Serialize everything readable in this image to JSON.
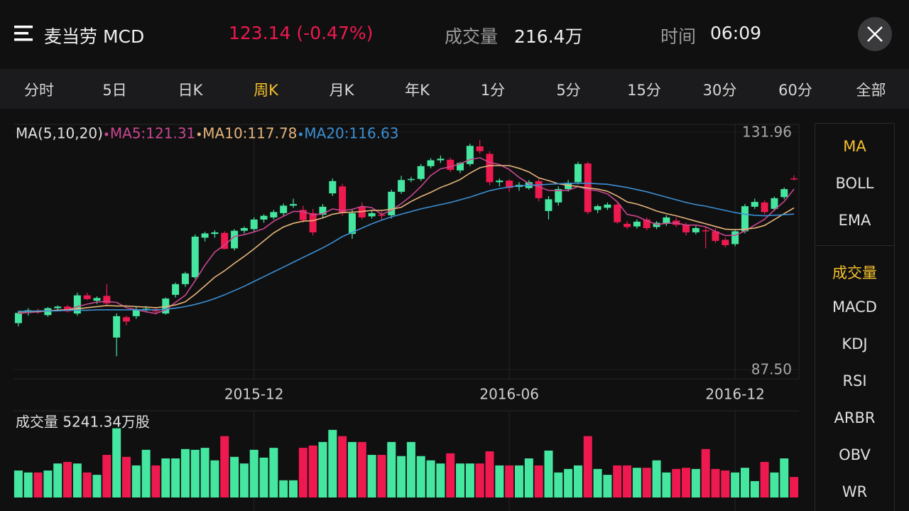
{
  "header": {
    "title": "麦当劳 MCD",
    "price": "123.14 (-0.47%)",
    "volume_label": "成交量",
    "volume": "216.4万",
    "time_label": "时间",
    "time": "06:09"
  },
  "tabs": [
    "分时",
    "5日",
    "日K",
    "周K",
    "月K",
    "年K",
    "1分",
    "5分",
    "15分",
    "30分",
    "60分",
    "全部"
  ],
  "active_tab": 3,
  "indicators": {
    "main": [
      "MA",
      "BOLL",
      "EMA"
    ],
    "sub": [
      "成交量",
      "MACD",
      "KDJ",
      "RSI",
      "ARBR",
      "OBV",
      "WR"
    ],
    "active_main": 0,
    "active_sub": 0
  },
  "chart_data": [
    {
      "type": "candlestick",
      "legend_title": "MA(5,10,20)",
      "categories": [
        null,
        null,
        null,
        null,
        null,
        null,
        null,
        null,
        null,
        null,
        null,
        null,
        null,
        null,
        null,
        null,
        null,
        null,
        null,
        null,
        null,
        null,
        null,
        null,
        "2015-12",
        null,
        null,
        null,
        null,
        null,
        null,
        null,
        null,
        null,
        null,
        null,
        null,
        null,
        null,
        null,
        null,
        null,
        null,
        null,
        null,
        null,
        null,
        null,
        null,
        null,
        "2016-06",
        null,
        null,
        null,
        null,
        null,
        null,
        null,
        null,
        null,
        null,
        null,
        null,
        null,
        null,
        null,
        null,
        null,
        null,
        null,
        null,
        null,
        null,
        "2016-12",
        null,
        null,
        null,
        null,
        null,
        null
      ],
      "open": [
        96.2,
        98.1,
        98.5,
        97.7,
        99.0,
        99.3,
        98.0,
        101.4,
        100.4,
        101.3,
        93.5,
        97.3,
        97.5,
        98.8,
        98.6,
        98.0,
        101.5,
        103.5,
        104.8,
        112.2,
        112.9,
        113.1,
        110.2,
        113.5,
        113.8,
        115.6,
        116.0,
        116.8,
        118.2,
        117.4,
        116.8,
        116.5,
        120.5,
        121.8,
        112.9,
        118.0,
        116.2,
        116.5,
        116.4,
        120.8,
        123.0,
        123.2,
        125.6,
        126.7,
        126.8,
        124.8,
        126.0,
        129.3,
        127.9,
        122.6,
        122.9,
        121.7,
        121.5,
        122.8,
        117.2,
        118.8,
        121.3,
        122.6,
        126.1,
        117.4,
        117.8,
        118.4,
        114.8,
        114.3,
        115.6,
        114.2,
        114.8,
        115.4,
        114.6,
        113.2,
        113.6,
        113.4,
        111.8,
        111.0,
        113.4,
        118.0,
        118.8,
        117.6,
        119.8,
        123.3
      ],
      "high": [
        98.5,
        99.0,
        98.9,
        99.2,
        99.5,
        99.6,
        101.9,
        101.9,
        101.2,
        103.5,
        98.0,
        97.6,
        99.2,
        99.4,
        99.2,
        101.0,
        103.8,
        105.8,
        112.8,
        113.3,
        113.6,
        113.4,
        113.8,
        114.3,
        116.0,
        116.6,
        117.4,
        118.6,
        119.5,
        118.2,
        117.6,
        118.5,
        123.3,
        122.3,
        117.6,
        118.8,
        117.4,
        117.2,
        121.2,
        123.8,
        123.6,
        126.0,
        127.1,
        127.6,
        127.2,
        126.4,
        129.8,
        130.5,
        128.4,
        123.3,
        123.1,
        122.6,
        123.0,
        123.2,
        120.0,
        121.8,
        123.0,
        126.4,
        126.4,
        118.4,
        118.8,
        118.9,
        115.3,
        115.6,
        116.0,
        115.3,
        116.4,
        116.0,
        115.0,
        114.4,
        114.2,
        114.0,
        112.2,
        113.8,
        118.5,
        119.5,
        119.2,
        119.9,
        121.6,
        123.9
      ],
      "low": [
        95.6,
        97.6,
        97.9,
        97.4,
        98.6,
        98.2,
        97.6,
        100.5,
        99.8,
        99.5,
        90.0,
        95.8,
        97.0,
        98.2,
        97.8,
        97.8,
        101.0,
        103.0,
        104.5,
        111.5,
        112.2,
        110.0,
        109.8,
        113.0,
        113.4,
        115.0,
        115.6,
        116.3,
        117.8,
        115.0,
        112.6,
        116.0,
        120.0,
        116.3,
        112.0,
        115.6,
        115.8,
        115.4,
        115.8,
        120.4,
        122.6,
        122.8,
        125.2,
        126.2,
        124.5,
        124.3,
        125.6,
        127.9,
        122.0,
        121.8,
        120.8,
        121.0,
        121.2,
        119.0,
        115.6,
        118.2,
        120.8,
        122.2,
        116.6,
        116.8,
        117.4,
        114.8,
        113.8,
        113.9,
        113.6,
        113.8,
        114.4,
        114.2,
        112.6,
        112.8,
        110.2,
        111.2,
        110.4,
        110.6,
        113.0,
        117.6,
        116.6,
        117.2,
        119.4,
        122.9
      ],
      "close": [
        98.1,
        98.6,
        98.3,
        99.0,
        99.3,
        98.4,
        101.4,
        100.7,
        100.9,
        99.9,
        97.5,
        96.5,
        98.8,
        98.9,
        98.4,
        100.8,
        103.5,
        105.5,
        112.4,
        113.0,
        113.2,
        110.1,
        113.5,
        114.0,
        115.6,
        116.3,
        117.0,
        118.2,
        118.5,
        115.5,
        113.2,
        118.0,
        122.8,
        116.8,
        116.8,
        116.0,
        116.8,
        116.3,
        120.8,
        123.0,
        123.2,
        125.6,
        126.7,
        127.0,
        124.9,
        126.2,
        129.4,
        128.4,
        122.6,
        122.9,
        121.5,
        122.1,
        122.6,
        119.6,
        119.4,
        121.3,
        122.5,
        126.0,
        117.0,
        118.1,
        118.4,
        115.1,
        114.2,
        115.2,
        114.0,
        115.0,
        116.0,
        114.6,
        113.2,
        114.0,
        113.4,
        111.6,
        110.8,
        113.4,
        118.1,
        118.9,
        117.0,
        119.6,
        121.3,
        123.14
      ],
      "up_color": "#45e6a0",
      "down_color": "#ee1a4f",
      "series": [
        {
          "name": "MA5:121.31",
          "color": "#c9478f",
          "values": [
            98.0,
            98.2,
            98.3,
            98.5,
            98.66,
            98.72,
            99.28,
            99.76,
            100.14,
            100.26,
            100.08,
            99.1,
            98.72,
            98.32,
            98.02,
            98.68,
            100.08,
            101.42,
            104.12,
            107.04,
            109.52,
            110.84,
            112.44,
            112.76,
            113.28,
            113.9,
            115.28,
            116.22,
            117.12,
            117.1,
            116.48,
            116.68,
            117.6,
            117.26,
            117.52,
            118.08,
            117.84,
            116.54,
            117.34,
            118.58,
            120.02,
            121.78,
            123.86,
            125.1,
            125.48,
            126.08,
            126.84,
            127.18,
            126.3,
            125.9,
            124.96,
            123.5,
            122.34,
            121.74,
            121.04,
            121.0,
            121.08,
            121.76,
            121.24,
            120.98,
            120.4,
            118.92,
            116.56,
            116.2,
            115.38,
            114.7,
            114.88,
            114.96,
            114.56,
            114.56,
            114.24,
            113.36,
            112.6,
            112.64,
            113.46,
            114.56,
            115.64,
            117.4,
            118.98,
            121.31
          ]
        },
        {
          "name": "MA10:117.78",
          "color": "#e6b47a",
          "values": [
            98.3,
            98.4,
            98.4,
            98.5,
            98.6,
            98.7,
            98.9,
            99.1,
            99.3,
            99.5,
            99.4,
            99.4,
            99.3,
            99.2,
            99.1,
            99.3,
            99.6,
            100.2,
            101.6,
            103.2,
            104.8,
            106.0,
            107.4,
            108.7,
            110.1,
            111.6,
            113.1,
            114.2,
            114.9,
            115.3,
            115.4,
            115.9,
            116.6,
            116.9,
            117.0,
            117.1,
            117.3,
            117.3,
            117.5,
            117.9,
            119.0,
            119.9,
            120.7,
            121.6,
            122.3,
            123.1,
            124.3,
            125.3,
            125.7,
            125.7,
            125.7,
            125.2,
            124.5,
            123.4,
            122.9,
            122.3,
            122.0,
            121.8,
            121.5,
            121.3,
            120.9,
            120.0,
            118.9,
            118.5,
            117.9,
            117.2,
            116.7,
            116.3,
            115.8,
            115.3,
            114.8,
            114.3,
            113.8,
            113.7,
            113.8,
            114.0,
            114.5,
            115.6,
            116.7,
            117.78
          ]
        },
        {
          "name": "MA20:116.63",
          "color": "#3c8fd2",
          "values": [
            98.4,
            98.4,
            98.5,
            98.5,
            98.5,
            98.6,
            98.6,
            98.6,
            98.7,
            98.7,
            98.7,
            98.7,
            98.7,
            98.7,
            98.7,
            98.8,
            99.0,
            99.3,
            99.7,
            100.2,
            100.8,
            101.5,
            102.3,
            103.1,
            104.0,
            104.9,
            105.8,
            106.7,
            107.6,
            108.5,
            109.4,
            110.3,
            111.3,
            112.4,
            113.2,
            114.0,
            114.8,
            115.5,
            116.1,
            116.6,
            117.1,
            117.6,
            118.0,
            118.4,
            118.8,
            119.3,
            119.8,
            120.4,
            121.0,
            121.4,
            121.7,
            121.9,
            122.0,
            122.1,
            122.2,
            122.3,
            122.4,
            122.4,
            122.4,
            122.3,
            122.2,
            121.9,
            121.6,
            121.2,
            120.8,
            120.3,
            119.8,
            119.3,
            118.8,
            118.4,
            118.1,
            117.7,
            117.3,
            116.9,
            116.6,
            116.4,
            116.3,
            116.4,
            116.5,
            116.63
          ]
        }
      ],
      "ylim": [
        87.5,
        131.96
      ],
      "yticks": [
        131.96,
        {
          "value": 87.5,
          "label": "87.50"
        }
      ],
      "grid": true
    },
    {
      "type": "bar",
      "title": "成交量  5241.34万股",
      "values": [
        6900,
        6400,
        6400,
        6900,
        8700,
        9100,
        8700,
        6400,
        5800,
        10900,
        17700,
        10400,
        8200,
        12200,
        8200,
        10000,
        10000,
        12400,
        12200,
        12700,
        9500,
        15700,
        10400,
        8700,
        12200,
        10200,
        12700,
        4400,
        4400,
        12700,
        13300,
        14200,
        17300,
        15700,
        14200,
        14200,
        10900,
        10900,
        14200,
        10600,
        14200,
        10600,
        9500,
        8700,
        11300,
        8700,
        8700,
        8700,
        11800,
        8200,
        8200,
        8200,
        10000,
        8200,
        12000,
        6400,
        7300,
        8200,
        15700,
        7300,
        5800,
        8200,
        8200,
        7600,
        7600,
        9500,
        6400,
        7300,
        7600,
        7300,
        12400,
        7300,
        6900,
        6400,
        7600,
        4200,
        9100,
        6400,
        10000,
        5241.34
      ],
      "ylim": [
        0,
        20000
      ]
    }
  ]
}
